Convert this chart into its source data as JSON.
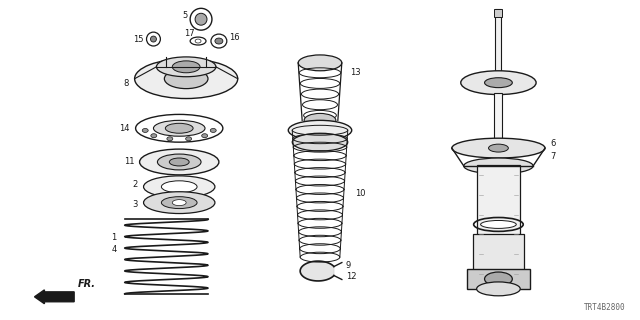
{
  "bg_color": "#ffffff",
  "lc": "#1a1a1a",
  "gray": "#666666",
  "diagram_code": "TRT4B2800",
  "figsize": [
    6.4,
    3.2
  ],
  "dpi": 100
}
